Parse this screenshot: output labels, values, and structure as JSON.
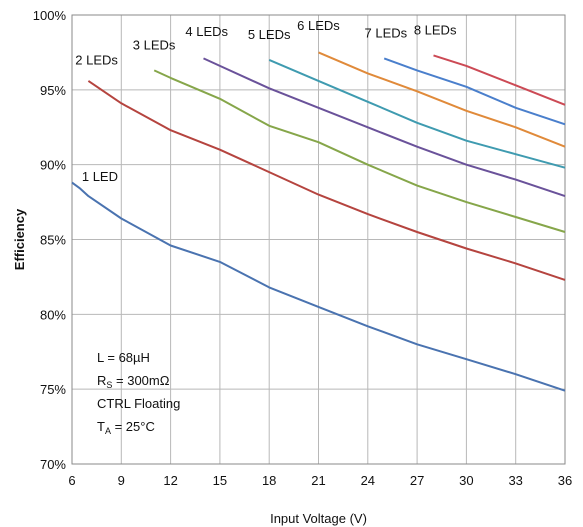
{
  "chart_data": {
    "type": "line",
    "xlabel": "Input Voltage (V)",
    "ylabel": "Efficiency",
    "xlim": [
      6,
      36
    ],
    "ylim": [
      70,
      100
    ],
    "xticks": [
      "6",
      "9",
      "12",
      "15",
      "18",
      "21",
      "24",
      "27",
      "30",
      "33",
      "36"
    ],
    "yticks": [
      "70%",
      "75%",
      "80%",
      "85%",
      "90%",
      "95%",
      "100%"
    ],
    "grid": true,
    "annotation": {
      "line1": "L = 68µH",
      "line2_main": "R",
      "line2_sub": "S",
      "line2_rest": " = 300mΩ",
      "line3": "CTRL Floating",
      "line4_main": "T",
      "line4_sub": "A",
      "line4_rest": " = 25°C"
    },
    "series": [
      {
        "name": "1 LED",
        "color": "#4a73b0",
        "points": [
          [
            6,
            88.8
          ],
          [
            6.5,
            88.4
          ],
          [
            7,
            87.9
          ],
          [
            9,
            86.4
          ],
          [
            12,
            84.6
          ],
          [
            15,
            83.5
          ],
          [
            18,
            81.8
          ],
          [
            21,
            80.5
          ],
          [
            24,
            79.2
          ],
          [
            27,
            78.0
          ],
          [
            30,
            77.0
          ],
          [
            33,
            76.0
          ],
          [
            36,
            74.9
          ]
        ]
      },
      {
        "name": "2 LEDs",
        "color": "#b5443f",
        "points": [
          [
            7,
            95.6
          ],
          [
            9,
            94.1
          ],
          [
            12,
            92.3
          ],
          [
            15,
            91.0
          ],
          [
            18,
            89.5
          ],
          [
            21,
            88.0
          ],
          [
            24,
            86.7
          ],
          [
            27,
            85.5
          ],
          [
            30,
            84.4
          ],
          [
            33,
            83.4
          ],
          [
            36,
            82.3
          ]
        ]
      },
      {
        "name": "3 LEDs",
        "color": "#86a64a",
        "points": [
          [
            11,
            96.3
          ],
          [
            12,
            95.8
          ],
          [
            15,
            94.4
          ],
          [
            18,
            92.6
          ],
          [
            21,
            91.5
          ],
          [
            24,
            90.0
          ],
          [
            27,
            88.6
          ],
          [
            30,
            87.5
          ],
          [
            33,
            86.5
          ],
          [
            36,
            85.5
          ]
        ]
      },
      {
        "name": "4 LEDs",
        "color": "#6a529a",
        "points": [
          [
            14,
            97.1
          ],
          [
            15,
            96.6
          ],
          [
            18,
            95.1
          ],
          [
            21,
            93.8
          ],
          [
            24,
            92.5
          ],
          [
            27,
            91.2
          ],
          [
            30,
            90.0
          ],
          [
            33,
            89.0
          ],
          [
            36,
            87.9
          ]
        ]
      },
      {
        "name": "5 LEDs",
        "color": "#3f9bb0",
        "points": [
          [
            18,
            97.0
          ],
          [
            21,
            95.6
          ],
          [
            24,
            94.2
          ],
          [
            27,
            92.8
          ],
          [
            30,
            91.6
          ],
          [
            33,
            90.7
          ],
          [
            36,
            89.8
          ]
        ]
      },
      {
        "name": "6 LEDs",
        "color": "#e08a3a",
        "points": [
          [
            21,
            97.5
          ],
          [
            24,
            96.1
          ],
          [
            27,
            94.9
          ],
          [
            30,
            93.6
          ],
          [
            33,
            92.5
          ],
          [
            36,
            91.2
          ]
        ]
      },
      {
        "name": "7 LEDs",
        "color": "#4a7fcc",
        "points": [
          [
            25,
            97.1
          ],
          [
            27,
            96.3
          ],
          [
            30,
            95.2
          ],
          [
            33,
            93.8
          ],
          [
            36,
            92.7
          ]
        ]
      },
      {
        "name": "8 LEDs",
        "color": "#cc4a55",
        "points": [
          [
            28,
            97.3
          ],
          [
            30,
            96.6
          ],
          [
            33,
            95.3
          ],
          [
            36,
            94.0
          ]
        ]
      }
    ],
    "series_labels": [
      {
        "name": "1 LED",
        "x": 6.6,
        "y": 88.9
      },
      {
        "name": "2 LEDs",
        "x": 6.2,
        "y": 96.7
      },
      {
        "name": "3 LEDs",
        "x": 9.7,
        "y": 97.7
      },
      {
        "name": "4 LEDs",
        "x": 12.9,
        "y": 98.6
      },
      {
        "name": "5 LEDs",
        "x": 16.7,
        "y": 98.4
      },
      {
        "name": "6 LEDs",
        "x": 19.7,
        "y": 99.0
      },
      {
        "name": "7 LEDs",
        "x": 23.8,
        "y": 98.5
      },
      {
        "name": "8 LEDs",
        "x": 26.8,
        "y": 98.7
      }
    ]
  }
}
